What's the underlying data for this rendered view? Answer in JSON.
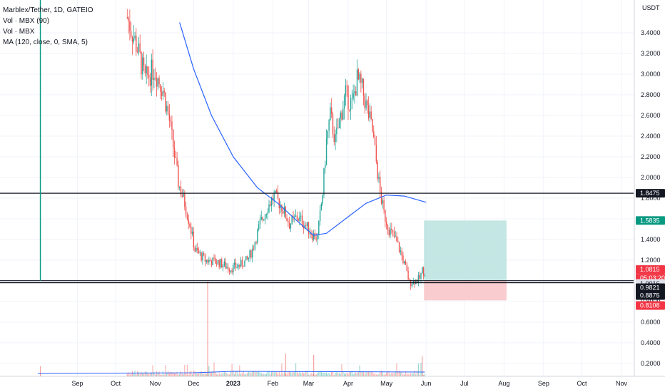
{
  "legend": {
    "title": "Marblex/Tether, 1D, GATEIO",
    "vol1": "Vol · MBX (90)",
    "vol2": "Vol · MBX",
    "ma": "MA (120, close, 0, SMA, 5)"
  },
  "currency": "USDT",
  "colors": {
    "up": "#26a69a",
    "down": "#ef5350",
    "ma_line": "#2962ff",
    "hline": "#131722",
    "vline": "#089981",
    "profit_zone": "#b2dfdb",
    "loss_zone": "#f8c1c4"
  },
  "chart_data": {
    "type": "candlestick",
    "x_ticks": [
      "Sep",
      "Oct",
      "Nov",
      "Dec",
      "2023",
      "Feb",
      "Mar",
      "Apr",
      "May",
      "Jun",
      "Jul",
      "Aug",
      "Sep",
      "Oct",
      "Nov"
    ],
    "y_ticks": [
      "3.4000",
      "3.2000",
      "3.0000",
      "2.8000",
      "2.6000",
      "2.4000",
      "2.2000",
      "2.0000",
      "1.8000",
      "1.6000",
      "1.4000",
      "1.2000",
      "1.0000",
      "0.8000",
      "0.6000",
      "0.4000",
      "0.2000"
    ],
    "price_labels": [
      {
        "text": "1.8475",
        "value": 1.8475,
        "style": "dark"
      },
      {
        "text": "1.5835",
        "value": 1.5835,
        "style": "green"
      },
      {
        "text": "1.0815",
        "value": 1.0815,
        "style": "red"
      },
      {
        "text": "05:03:20",
        "value": 1.0815,
        "style": "red_sub"
      },
      {
        "text": "1.0016",
        "value": 1.0016,
        "style": "light"
      },
      {
        "text": "0.9821",
        "value": 0.9821,
        "style": "dark"
      },
      {
        "text": "0.8875",
        "value": 0.8875,
        "style": "dark"
      },
      {
        "text": "0.8108",
        "value": 0.8108,
        "style": "red"
      }
    ],
    "horizontal_lines": [
      1.8475,
      1.0016,
      0.9821
    ],
    "position": {
      "entry": 1.0016,
      "target": 1.5835,
      "stop": 0.8108,
      "start_month": "Jun",
      "end_month": "Aug"
    },
    "close_path": [
      {
        "date": "2022-10-10",
        "close": 3.55
      },
      {
        "date": "2022-10-18",
        "close": 3.25
      },
      {
        "date": "2022-10-24",
        "close": 2.95
      },
      {
        "date": "2022-10-31",
        "close": 3.05
      },
      {
        "date": "2022-11-07",
        "close": 2.85
      },
      {
        "date": "2022-11-12",
        "close": 2.55
      },
      {
        "date": "2022-11-15",
        "close": 2.3
      },
      {
        "date": "2022-11-19",
        "close": 1.95
      },
      {
        "date": "2022-11-24",
        "close": 1.75
      },
      {
        "date": "2022-11-28",
        "close": 1.55
      },
      {
        "date": "2022-12-02",
        "close": 1.3
      },
      {
        "date": "2022-12-10",
        "close": 1.2
      },
      {
        "date": "2022-12-20",
        "close": 1.18
      },
      {
        "date": "2022-12-30",
        "close": 1.12
      },
      {
        "date": "2023-01-06",
        "close": 1.15
      },
      {
        "date": "2023-01-12",
        "close": 1.2
      },
      {
        "date": "2023-01-16",
        "close": 1.3
      },
      {
        "date": "2023-01-22",
        "close": 1.55
      },
      {
        "date": "2023-01-28",
        "close": 1.72
      },
      {
        "date": "2023-02-02",
        "close": 1.82
      },
      {
        "date": "2023-02-08",
        "close": 1.72
      },
      {
        "date": "2023-02-14",
        "close": 1.55
      },
      {
        "date": "2023-02-20",
        "close": 1.62
      },
      {
        "date": "2023-02-26",
        "close": 1.55
      },
      {
        "date": "2023-03-04",
        "close": 1.45
      },
      {
        "date": "2023-03-08",
        "close": 1.42
      },
      {
        "date": "2023-03-12",
        "close": 1.85
      },
      {
        "date": "2023-03-15",
        "close": 2.35
      },
      {
        "date": "2023-03-18",
        "close": 2.6
      },
      {
        "date": "2023-03-22",
        "close": 2.35
      },
      {
        "date": "2023-03-26",
        "close": 2.6
      },
      {
        "date": "2023-03-30",
        "close": 2.8
      },
      {
        "date": "2023-04-04",
        "close": 2.7
      },
      {
        "date": "2023-04-08",
        "close": 2.95
      },
      {
        "date": "2023-04-12",
        "close": 2.85
      },
      {
        "date": "2023-04-16",
        "close": 2.65
      },
      {
        "date": "2023-04-20",
        "close": 2.45
      },
      {
        "date": "2023-04-23",
        "close": 2.15
      },
      {
        "date": "2023-04-26",
        "close": 1.85
      },
      {
        "date": "2023-04-29",
        "close": 1.65
      },
      {
        "date": "2023-05-03",
        "close": 1.5
      },
      {
        "date": "2023-05-08",
        "close": 1.4
      },
      {
        "date": "2023-05-12",
        "close": 1.28
      },
      {
        "date": "2023-05-16",
        "close": 1.12
      },
      {
        "date": "2023-05-19",
        "close": 0.98
      },
      {
        "date": "2023-05-23",
        "close": 1.0
      },
      {
        "date": "2023-05-27",
        "close": 1.02
      },
      {
        "date": "2023-05-29",
        "close": 1.1
      },
      {
        "date": "2023-05-31",
        "close": 1.08
      }
    ],
    "ma_path": [
      {
        "date": "2022-11-20",
        "value": 3.5
      },
      {
        "date": "2022-12-01",
        "value": 3.05
      },
      {
        "date": "2022-12-15",
        "value": 2.6
      },
      {
        "date": "2023-01-01",
        "value": 2.2
      },
      {
        "date": "2023-01-20",
        "value": 1.9
      },
      {
        "date": "2023-02-05",
        "value": 1.75
      },
      {
        "date": "2023-02-20",
        "value": 1.58
      },
      {
        "date": "2023-03-05",
        "value": 1.44
      },
      {
        "date": "2023-03-15",
        "value": 1.46
      },
      {
        "date": "2023-04-01",
        "value": 1.62
      },
      {
        "date": "2023-04-15",
        "value": 1.75
      },
      {
        "date": "2023-05-01",
        "value": 1.83
      },
      {
        "date": "2023-05-15",
        "value": 1.82
      },
      {
        "date": "2023-06-01",
        "value": 1.76
      }
    ],
    "ylim": [
      0.1,
      3.6
    ]
  }
}
